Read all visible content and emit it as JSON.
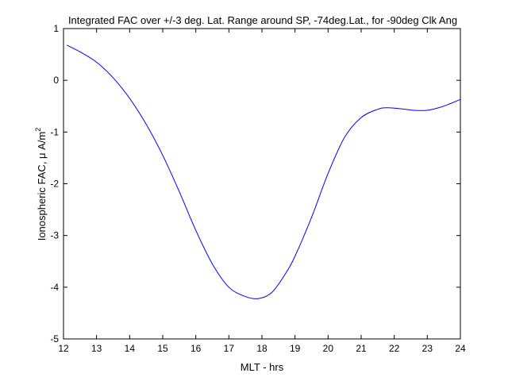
{
  "chart_data": {
    "type": "line",
    "title": "Integrated FAC over +/-3 deg. Lat. Range around SP, -74deg.Lat., for -90deg Clk Ang",
    "xlabel": "MLT - hrs",
    "ylabel_main": "Ionospheric FAC, μ A/m",
    "ylabel_sup": "2",
    "xlim": [
      12,
      24
    ],
    "ylim": [
      -5,
      1
    ],
    "xticks": [
      "12",
      "13",
      "14",
      "15",
      "16",
      "17",
      "18",
      "19",
      "20",
      "21",
      "22",
      "23",
      "24"
    ],
    "yticks": [
      "1",
      "0",
      "-1",
      "-2",
      "-3",
      "-4",
      "-5"
    ],
    "grid": false,
    "line_color": "#0000ff",
    "series": [
      {
        "x": [
          12.1,
          12.5,
          13.0,
          13.5,
          14.0,
          14.5,
          15.0,
          15.5,
          16.0,
          16.5,
          17.0,
          17.5,
          17.9,
          18.3,
          18.7,
          19.0,
          19.5,
          20.0,
          20.5,
          21.0,
          21.5,
          21.8,
          22.2,
          22.6,
          23.0,
          23.4,
          23.7,
          24.0
        ],
        "y": [
          0.68,
          0.55,
          0.35,
          0.05,
          -0.35,
          -0.85,
          -1.45,
          -2.15,
          -2.9,
          -3.55,
          -4.0,
          -4.18,
          -4.22,
          -4.1,
          -3.75,
          -3.4,
          -2.65,
          -1.8,
          -1.1,
          -0.72,
          -0.56,
          -0.53,
          -0.55,
          -0.58,
          -0.58,
          -0.52,
          -0.45,
          -0.37
        ]
      }
    ]
  }
}
